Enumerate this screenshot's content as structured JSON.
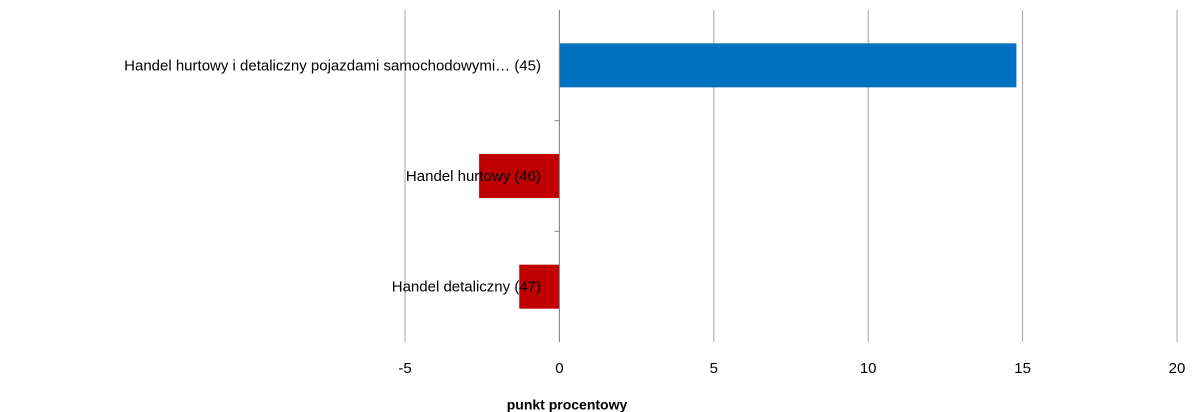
{
  "chart_data": {
    "type": "barh",
    "categories": [
      "Handel hurtowy i detaliczny pojazdami samochodowymi… (45)",
      "Handel hurtowy (46)",
      "Handel detaliczny (47)"
    ],
    "values": [
      14.8,
      -2.6,
      -1.3
    ],
    "colors": [
      "#0070c0",
      "#c00000",
      "#c00000"
    ],
    "xlabel": "punkt procentowy",
    "xlim": [
      -5,
      20
    ],
    "xticks": [
      -5,
      0,
      5,
      10,
      15,
      20
    ],
    "grid": true
  }
}
